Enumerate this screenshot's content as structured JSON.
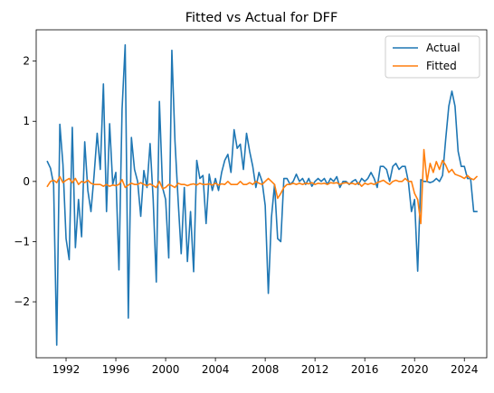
{
  "chart_data": {
    "type": "line",
    "title": "Fitted vs Actual for DFF",
    "xlabel": "",
    "ylabel": "",
    "x_ticks": [
      1992,
      1996,
      2000,
      2004,
      2008,
      2012,
      2016,
      2020,
      2024
    ],
    "y_ticks": [
      -2,
      -1,
      0,
      1,
      2
    ],
    "y_tick_labels": [
      "−2",
      "−1",
      "0",
      "1",
      "2"
    ],
    "xlim": [
      1989.6,
      2025.8
    ],
    "ylim": [
      -2.93,
      2.52
    ],
    "grid": false,
    "legend_position": "top-right",
    "series": [
      {
        "name": "Actual",
        "color": "#1f77b4",
        "points": [
          [
            1990.5,
            0.33
          ],
          [
            1990.75,
            0.22
          ],
          [
            1991.0,
            -0.05
          ],
          [
            1991.25,
            -2.72
          ],
          [
            1991.5,
            0.95
          ],
          [
            1991.75,
            0.28
          ],
          [
            1992.0,
            -0.95
          ],
          [
            1992.25,
            -1.3
          ],
          [
            1992.5,
            0.9
          ],
          [
            1992.75,
            -1.1
          ],
          [
            1993.0,
            -0.3
          ],
          [
            1993.25,
            -0.92
          ],
          [
            1993.5,
            0.66
          ],
          [
            1993.75,
            -0.15
          ],
          [
            1994.0,
            -0.5
          ],
          [
            1994.25,
            0.1
          ],
          [
            1994.5,
            0.8
          ],
          [
            1994.75,
            0.2
          ],
          [
            1995.0,
            1.62
          ],
          [
            1995.25,
            -0.5
          ],
          [
            1995.5,
            0.96
          ],
          [
            1995.75,
            -0.05
          ],
          [
            1996.0,
            0.15
          ],
          [
            1996.25,
            -1.47
          ],
          [
            1996.5,
            1.2
          ],
          [
            1996.75,
            2.27
          ],
          [
            1997.0,
            -2.27
          ],
          [
            1997.25,
            0.73
          ],
          [
            1997.5,
            0.2
          ],
          [
            1997.75,
            0.0
          ],
          [
            1998.0,
            -0.58
          ],
          [
            1998.25,
            0.18
          ],
          [
            1998.5,
            -0.1
          ],
          [
            1998.75,
            0.63
          ],
          [
            1999.0,
            -0.3
          ],
          [
            1999.25,
            -1.67
          ],
          [
            1999.5,
            1.33
          ],
          [
            1999.75,
            -0.1
          ],
          [
            2000.0,
            -0.3
          ],
          [
            2000.25,
            -1.27
          ],
          [
            2000.5,
            2.18
          ],
          [
            2000.75,
            0.67
          ],
          [
            2001.0,
            -0.3
          ],
          [
            2001.25,
            -1.2
          ],
          [
            2001.5,
            -0.1
          ],
          [
            2001.75,
            -1.33
          ],
          [
            2002.0,
            -0.5
          ],
          [
            2002.25,
            -1.5
          ],
          [
            2002.5,
            0.35
          ],
          [
            2002.75,
            0.05
          ],
          [
            2003.0,
            0.1
          ],
          [
            2003.25,
            -0.7
          ],
          [
            2003.5,
            0.12
          ],
          [
            2003.75,
            -0.15
          ],
          [
            2004.0,
            0.05
          ],
          [
            2004.25,
            -0.15
          ],
          [
            2004.5,
            0.15
          ],
          [
            2004.75,
            0.35
          ],
          [
            2005.0,
            0.45
          ],
          [
            2005.25,
            0.15
          ],
          [
            2005.5,
            0.86
          ],
          [
            2005.75,
            0.55
          ],
          [
            2006.0,
            0.62
          ],
          [
            2006.25,
            0.2
          ],
          [
            2006.5,
            0.8
          ],
          [
            2006.75,
            0.5
          ],
          [
            2007.0,
            0.25
          ],
          [
            2007.25,
            -0.1
          ],
          [
            2007.5,
            0.15
          ],
          [
            2007.75,
            0.0
          ],
          [
            2008.0,
            -0.4
          ],
          [
            2008.25,
            -1.86
          ],
          [
            2008.5,
            -0.6
          ],
          [
            2008.75,
            -0.05
          ],
          [
            2009.0,
            -0.95
          ],
          [
            2009.25,
            -1.0
          ],
          [
            2009.5,
            0.05
          ],
          [
            2009.75,
            0.05
          ],
          [
            2010.0,
            -0.05
          ],
          [
            2010.25,
            0.0
          ],
          [
            2010.5,
            0.12
          ],
          [
            2010.75,
            0.0
          ],
          [
            2011.0,
            0.05
          ],
          [
            2011.25,
            -0.05
          ],
          [
            2011.5,
            0.05
          ],
          [
            2011.75,
            -0.08
          ],
          [
            2012.0,
            0.0
          ],
          [
            2012.25,
            0.05
          ],
          [
            2012.5,
            0.0
          ],
          [
            2012.75,
            0.05
          ],
          [
            2013.0,
            -0.05
          ],
          [
            2013.25,
            0.05
          ],
          [
            2013.5,
            0.0
          ],
          [
            2013.75,
            0.08
          ],
          [
            2014.0,
            -0.1
          ],
          [
            2014.25,
            0.0
          ],
          [
            2014.5,
            0.0
          ],
          [
            2014.75,
            -0.05
          ],
          [
            2015.0,
            0.0
          ],
          [
            2015.25,
            0.03
          ],
          [
            2015.5,
            -0.05
          ],
          [
            2015.75,
            0.05
          ],
          [
            2016.0,
            0.0
          ],
          [
            2016.25,
            0.05
          ],
          [
            2016.5,
            0.15
          ],
          [
            2016.75,
            0.05
          ],
          [
            2017.0,
            -0.1
          ],
          [
            2017.25,
            0.25
          ],
          [
            2017.5,
            0.25
          ],
          [
            2017.75,
            0.2
          ],
          [
            2018.0,
            0.0
          ],
          [
            2018.25,
            0.25
          ],
          [
            2018.5,
            0.3
          ],
          [
            2018.75,
            0.2
          ],
          [
            2019.0,
            0.25
          ],
          [
            2019.25,
            0.25
          ],
          [
            2019.5,
            0.0
          ],
          [
            2019.75,
            -0.5
          ],
          [
            2020.0,
            -0.3
          ],
          [
            2020.25,
            -1.49
          ],
          [
            2020.5,
            0.03
          ],
          [
            2020.75,
            0.0
          ],
          [
            2021.0,
            0.0
          ],
          [
            2021.25,
            -0.02
          ],
          [
            2021.5,
            0.0
          ],
          [
            2021.75,
            0.05
          ],
          [
            2022.0,
            0.0
          ],
          [
            2022.25,
            0.1
          ],
          [
            2022.5,
            0.7
          ],
          [
            2022.75,
            1.25
          ],
          [
            2023.0,
            1.5
          ],
          [
            2023.25,
            1.25
          ],
          [
            2023.5,
            0.5
          ],
          [
            2023.75,
            0.25
          ],
          [
            2024.0,
            0.25
          ],
          [
            2024.25,
            0.05
          ],
          [
            2024.5,
            0.05
          ],
          [
            2024.75,
            -0.5
          ],
          [
            2025.0,
            -0.5
          ]
        ]
      },
      {
        "name": "Fitted",
        "color": "#ff7f0e",
        "points": [
          [
            1990.5,
            -0.08
          ],
          [
            1990.75,
            0.0
          ],
          [
            1991.0,
            0.02
          ],
          [
            1991.25,
            -0.02
          ],
          [
            1991.5,
            0.08
          ],
          [
            1991.75,
            -0.02
          ],
          [
            1992.0,
            0.02
          ],
          [
            1992.25,
            0.05
          ],
          [
            1992.5,
            -0.02
          ],
          [
            1992.75,
            0.05
          ],
          [
            1993.0,
            -0.05
          ],
          [
            1993.25,
            0.0
          ],
          [
            1993.5,
            -0.02
          ],
          [
            1993.75,
            0.02
          ],
          [
            1994.0,
            -0.03
          ],
          [
            1994.25,
            -0.05
          ],
          [
            1994.5,
            -0.05
          ],
          [
            1994.75,
            -0.05
          ],
          [
            1995.0,
            -0.08
          ],
          [
            1995.25,
            -0.05
          ],
          [
            1995.5,
            -0.08
          ],
          [
            1995.75,
            -0.06
          ],
          [
            1996.0,
            -0.07
          ],
          [
            1996.25,
            -0.05
          ],
          [
            1996.5,
            0.03
          ],
          [
            1996.75,
            -0.1
          ],
          [
            1997.0,
            -0.06
          ],
          [
            1997.25,
            -0.03
          ],
          [
            1997.5,
            -0.05
          ],
          [
            1997.75,
            -0.05
          ],
          [
            1998.0,
            -0.02
          ],
          [
            1998.25,
            -0.05
          ],
          [
            1998.5,
            -0.07
          ],
          [
            1998.75,
            -0.04
          ],
          [
            1999.0,
            -0.07
          ],
          [
            1999.25,
            -0.1
          ],
          [
            1999.5,
            0.0
          ],
          [
            1999.75,
            -0.12
          ],
          [
            2000.0,
            -0.1
          ],
          [
            2000.25,
            -0.05
          ],
          [
            2000.5,
            -0.07
          ],
          [
            2000.75,
            -0.1
          ],
          [
            2001.0,
            -0.03
          ],
          [
            2001.25,
            -0.05
          ],
          [
            2001.5,
            -0.05
          ],
          [
            2001.75,
            -0.07
          ],
          [
            2002.0,
            -0.05
          ],
          [
            2002.25,
            -0.04
          ],
          [
            2002.5,
            -0.06
          ],
          [
            2002.75,
            -0.03
          ],
          [
            2003.0,
            -0.05
          ],
          [
            2003.25,
            -0.05
          ],
          [
            2003.5,
            -0.04
          ],
          [
            2003.75,
            -0.06
          ],
          [
            2004.0,
            -0.03
          ],
          [
            2004.25,
            -0.06
          ],
          [
            2004.5,
            -0.04
          ],
          [
            2004.75,
            -0.05
          ],
          [
            2005.0,
            0.0
          ],
          [
            2005.25,
            -0.05
          ],
          [
            2005.5,
            -0.05
          ],
          [
            2005.75,
            -0.05
          ],
          [
            2006.0,
            0.0
          ],
          [
            2006.25,
            -0.05
          ],
          [
            2006.5,
            -0.05
          ],
          [
            2006.75,
            -0.02
          ],
          [
            2007.0,
            -0.05
          ],
          [
            2007.25,
            0.0
          ],
          [
            2007.5,
            -0.03
          ],
          [
            2007.75,
            -0.05
          ],
          [
            2008.0,
            0.0
          ],
          [
            2008.25,
            0.05
          ],
          [
            2008.5,
            0.0
          ],
          [
            2008.75,
            -0.05
          ],
          [
            2009.0,
            -0.28
          ],
          [
            2009.25,
            -0.2
          ],
          [
            2009.5,
            -0.1
          ],
          [
            2009.75,
            -0.05
          ],
          [
            2010.0,
            -0.05
          ],
          [
            2010.25,
            -0.03
          ],
          [
            2010.5,
            -0.05
          ],
          [
            2010.75,
            -0.03
          ],
          [
            2011.0,
            -0.05
          ],
          [
            2011.25,
            -0.03
          ],
          [
            2011.5,
            -0.04
          ],
          [
            2011.75,
            -0.02
          ],
          [
            2012.0,
            -0.05
          ],
          [
            2012.25,
            -0.03
          ],
          [
            2012.5,
            -0.04
          ],
          [
            2012.75,
            -0.03
          ],
          [
            2013.0,
            -0.05
          ],
          [
            2013.25,
            -0.02
          ],
          [
            2013.5,
            -0.03
          ],
          [
            2013.75,
            -0.02
          ],
          [
            2014.0,
            -0.05
          ],
          [
            2014.25,
            -0.03
          ],
          [
            2014.5,
            -0.02
          ],
          [
            2014.75,
            -0.04
          ],
          [
            2015.0,
            -0.03
          ],
          [
            2015.25,
            -0.05
          ],
          [
            2015.5,
            -0.02
          ],
          [
            2015.75,
            -0.08
          ],
          [
            2016.0,
            -0.03
          ],
          [
            2016.25,
            -0.05
          ],
          [
            2016.5,
            -0.03
          ],
          [
            2016.75,
            -0.05
          ],
          [
            2017.0,
            -0.02
          ],
          [
            2017.25,
            0.0
          ],
          [
            2017.5,
            0.02
          ],
          [
            2017.75,
            -0.02
          ],
          [
            2018.0,
            -0.05
          ],
          [
            2018.25,
            0.0
          ],
          [
            2018.5,
            0.02
          ],
          [
            2018.75,
            0.0
          ],
          [
            2019.0,
            0.0
          ],
          [
            2019.25,
            0.05
          ],
          [
            2019.5,
            0.0
          ],
          [
            2019.75,
            0.0
          ],
          [
            2020.0,
            -0.2
          ],
          [
            2020.25,
            -0.3
          ],
          [
            2020.5,
            -0.7
          ],
          [
            2020.75,
            0.53
          ],
          [
            2021.0,
            0.0
          ],
          [
            2021.25,
            0.3
          ],
          [
            2021.5,
            0.15
          ],
          [
            2021.75,
            0.33
          ],
          [
            2022.0,
            0.2
          ],
          [
            2022.25,
            0.35
          ],
          [
            2022.5,
            0.27
          ],
          [
            2022.75,
            0.15
          ],
          [
            2023.0,
            0.2
          ],
          [
            2023.25,
            0.12
          ],
          [
            2023.5,
            0.1
          ],
          [
            2023.75,
            0.08
          ],
          [
            2024.0,
            0.05
          ],
          [
            2024.25,
            0.1
          ],
          [
            2024.5,
            0.05
          ],
          [
            2024.75,
            0.03
          ],
          [
            2025.0,
            0.08
          ]
        ]
      }
    ]
  }
}
